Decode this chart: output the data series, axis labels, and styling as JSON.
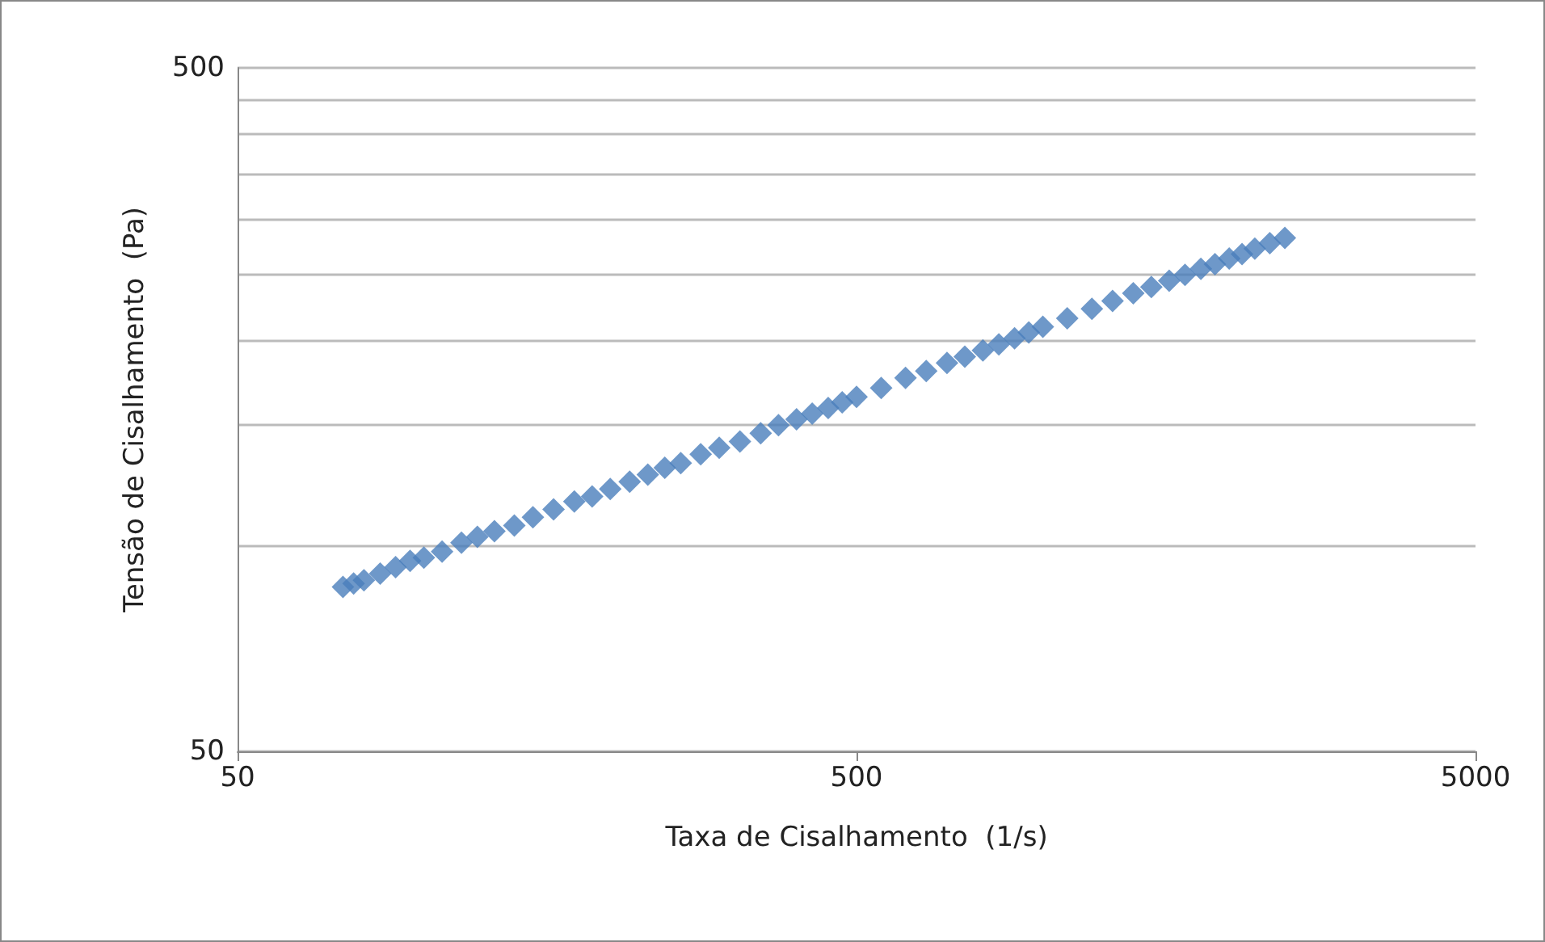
{
  "chart_data": {
    "type": "scatter",
    "xlabel": "Taxa de Cisalhamento  (1/s)",
    "ylabel": "Tensão de Cisalhamento  (Pa)",
    "x": [
      74,
      77,
      80,
      85,
      90,
      95,
      100,
      107,
      115,
      122,
      130,
      140,
      150,
      162,
      175,
      187,
      200,
      215,
      230,
      245,
      260,
      280,
      300,
      324,
      350,
      374,
      400,
      424,
      450,
      474,
      500,
      548,
      600,
      648,
      700,
      748,
      800,
      849,
      900,
      949,
      1000,
      1095,
      1200,
      1296,
      1400,
      1497,
      1600,
      1697,
      1800,
      1897,
      2000,
      2098,
      2200,
      2326,
      2460
    ],
    "series": [
      {
        "color": "#4a7ebb",
        "values": [
          87,
          88,
          89,
          91,
          93,
          95,
          96,
          98,
          101,
          103,
          105,
          107,
          110,
          113,
          116,
          118,
          121,
          124,
          127,
          130,
          132,
          136,
          139,
          142,
          146,
          150,
          153,
          156,
          159,
          162,
          165,
          170,
          176,
          180,
          185,
          189,
          193,
          197,
          201,
          205,
          209,
          215,
          222,
          228,
          234,
          239,
          244,
          249,
          254,
          258,
          263,
          267,
          272,
          277,
          282
        ]
      }
    ],
    "log": "xy",
    "xlim": [
      50,
      5000
    ],
    "xticks": [
      50,
      500,
      5000
    ],
    "ylim": [
      50,
      500
    ],
    "yticks": [
      50,
      {
        "value": 100,
        "label": null
      },
      {
        "value": 150,
        "label": null
      },
      {
        "value": 200,
        "label": null
      },
      {
        "value": 250,
        "label": null
      },
      {
        "value": 300,
        "label": null
      },
      {
        "value": 350,
        "label": null
      },
      {
        "value": 400,
        "label": null
      },
      {
        "value": 450,
        "label": null
      },
      500
    ],
    "grid": "y",
    "marker": "diamond"
  }
}
